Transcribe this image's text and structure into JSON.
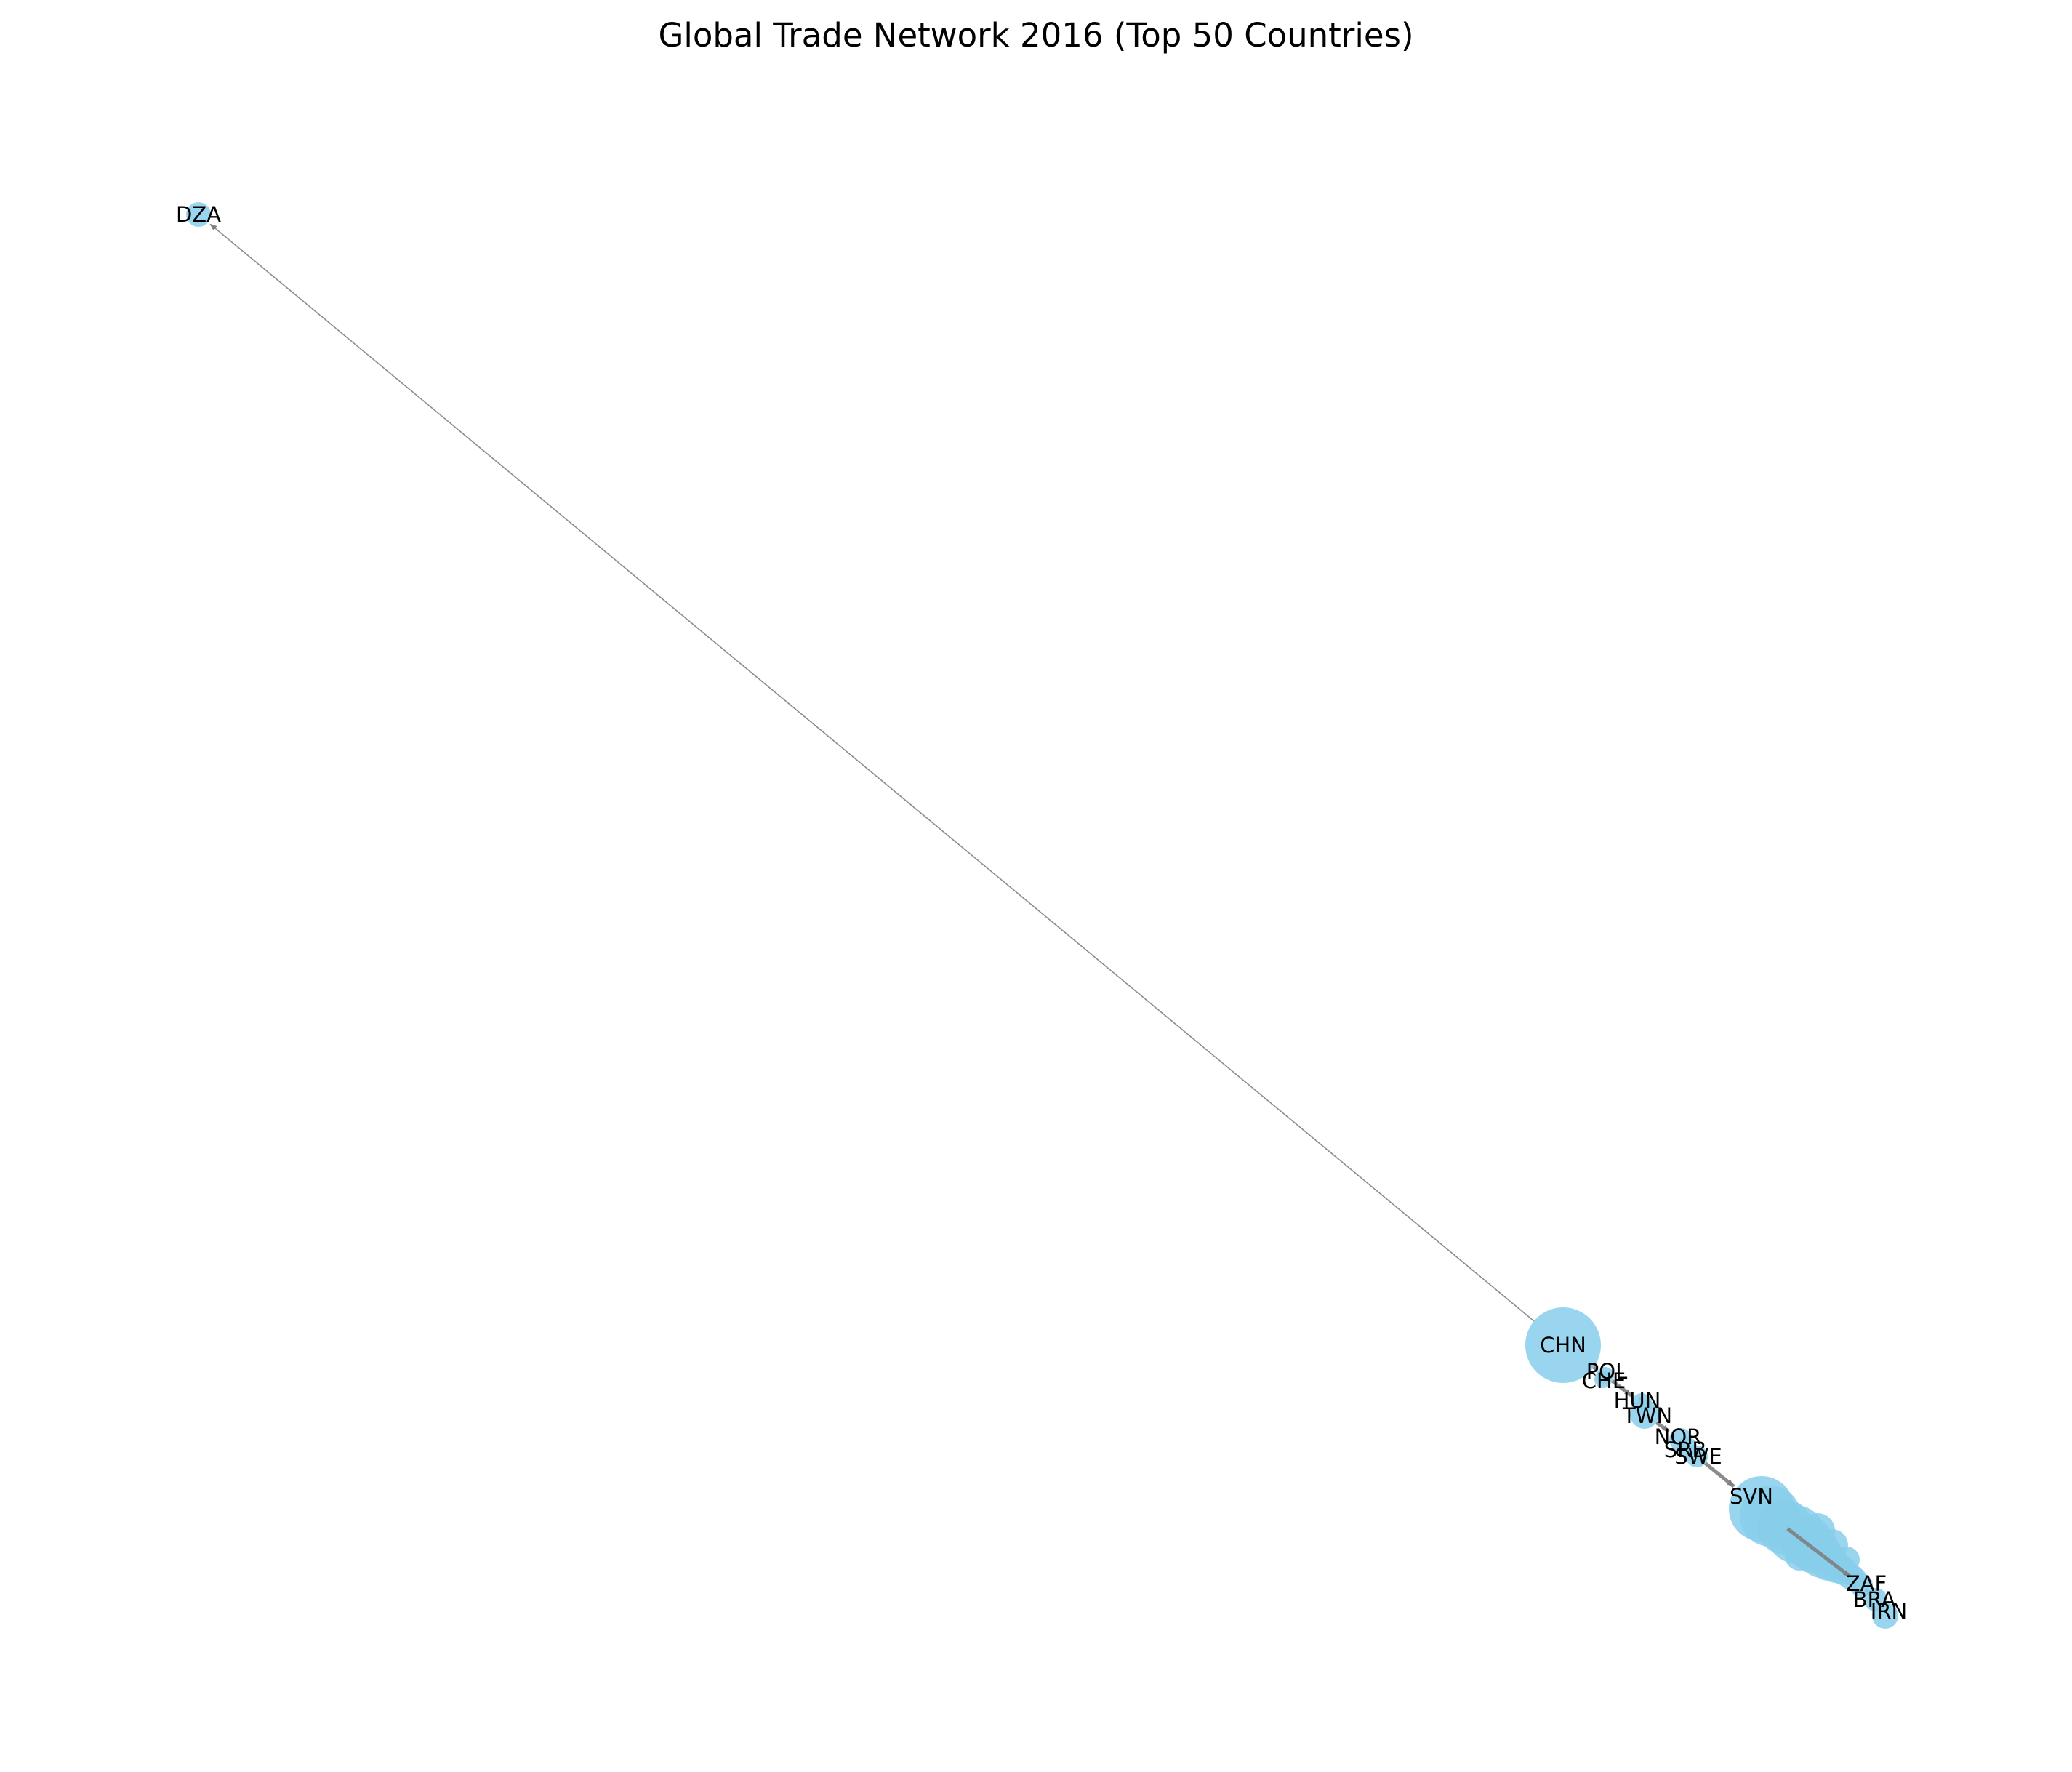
{
  "title": "Global Trade Network 2016 (Top 50 Countries)",
  "colors": {
    "node_fill": "#87ceeb",
    "edge": "#808080",
    "label": "#000000"
  },
  "nodes": [
    {
      "id": "DZA"
    },
    {
      "id": "CHN"
    },
    {
      "id": "POL"
    },
    {
      "id": "CHE"
    },
    {
      "id": "HUN"
    },
    {
      "id": "TWN"
    },
    {
      "id": "NOR"
    },
    {
      "id": "SRB"
    },
    {
      "id": "SWE"
    },
    {
      "id": "SVN"
    },
    {
      "id": "ZAF"
    },
    {
      "id": "BRA"
    },
    {
      "id": "IRN"
    }
  ],
  "edges": [
    {
      "source": "CHN",
      "target": "DZA"
    },
    {
      "source": "CHN",
      "target": "POL"
    },
    {
      "source": "POL",
      "target": "HUN"
    },
    {
      "source": "HUN",
      "target": "TWN"
    },
    {
      "source": "TWN",
      "target": "NOR"
    },
    {
      "source": "NOR",
      "target": "SWE"
    },
    {
      "source": "SWE",
      "target": "SVN"
    },
    {
      "source": "SVN",
      "target": "ZAF"
    },
    {
      "source": "ZAF",
      "target": "BRA"
    },
    {
      "source": "BRA",
      "target": "IRN"
    }
  ]
}
